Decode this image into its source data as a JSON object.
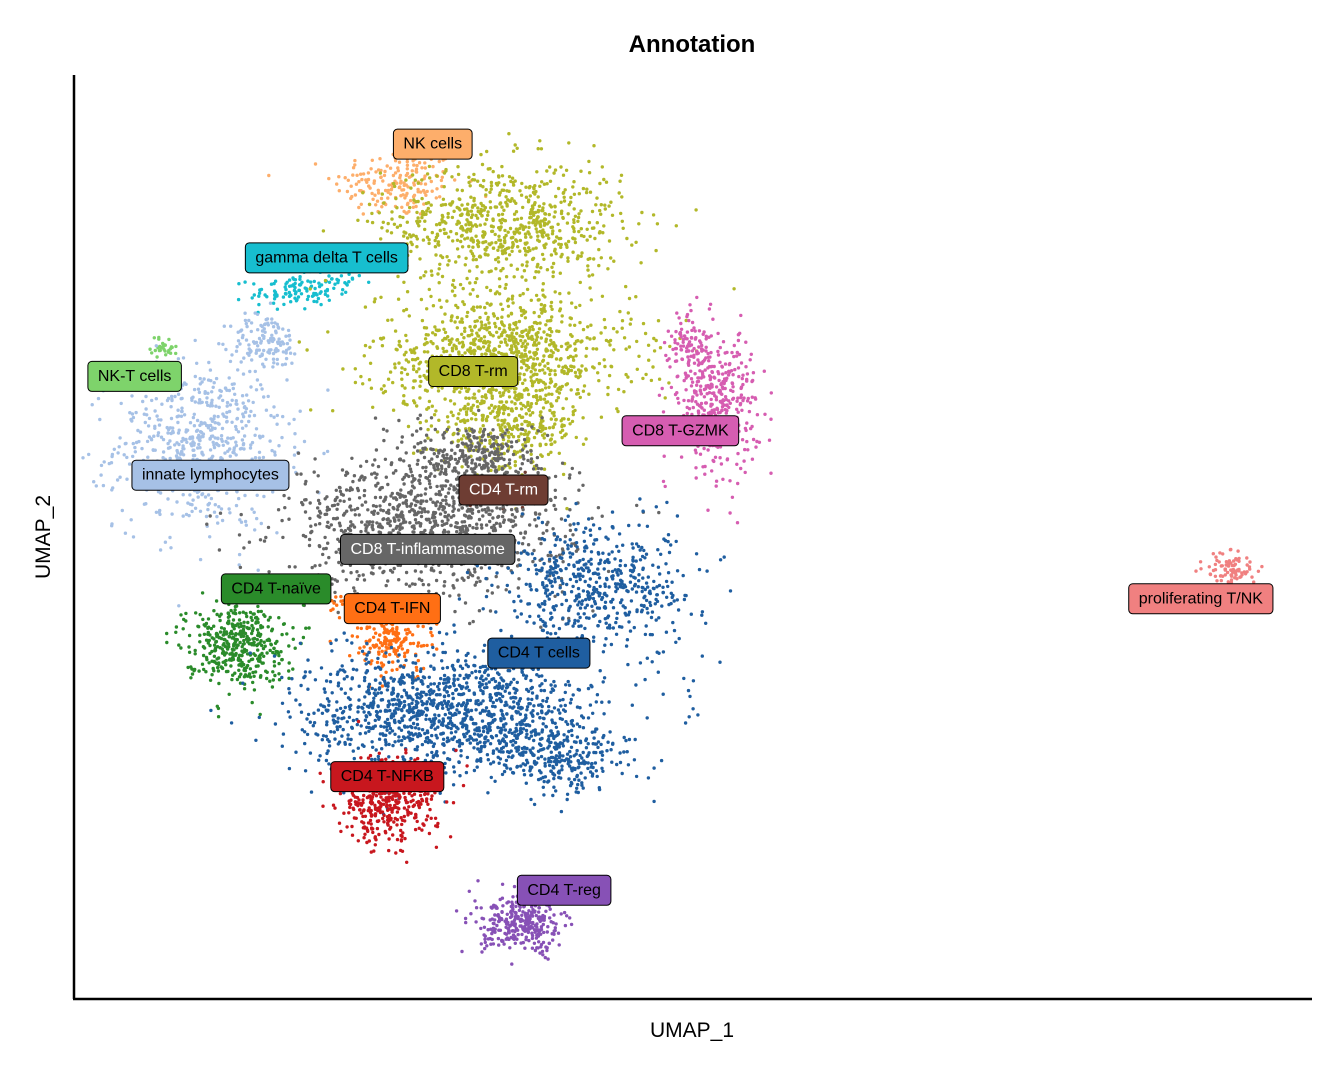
{
  "chart_data": {
    "type": "scatter",
    "title": "Annotation",
    "xlabel": "UMAP_1",
    "ylabel": "UMAP_2",
    "xlim": [
      -8.5,
      16
    ],
    "ylim": [
      -8.2,
      10.5
    ],
    "grid": false,
    "legend": "none (on-plot cluster labels)",
    "clusters": [
      {
        "name": "NK cells",
        "color": "#FDAE6B",
        "text_color": "#000000",
        "label_pos": [
          -1.4,
          9.1
        ],
        "blobs": [
          [
            -2.1,
            8.3,
            0.9,
            0.5,
            180
          ]
        ]
      },
      {
        "name": "gamma delta T cells",
        "color": "#17BECF",
        "text_color": "#000000",
        "label_pos": [
          -3.5,
          6.8
        ],
        "blobs": [
          [
            -4.2,
            6.1,
            0.6,
            0.25,
            90
          ],
          [
            -3.4,
            6.3,
            0.5,
            0.2,
            40
          ]
        ]
      },
      {
        "name": "NK-T cells",
        "color": "#7ED36B",
        "text_color": "#000000",
        "label_pos": [
          -7.3,
          4.4
        ],
        "blobs": [
          [
            -6.7,
            5.0,
            0.2,
            0.15,
            30
          ]
        ]
      },
      {
        "name": "innate lymphocytes",
        "color": "#A6C1E6",
        "text_color": "#000000",
        "label_pos": [
          -5.8,
          2.4
        ],
        "blobs": [
          [
            -6.0,
            3.0,
            1.2,
            1.2,
            650
          ],
          [
            -4.7,
            5.1,
            0.5,
            0.4,
            120
          ]
        ]
      },
      {
        "name": "CD8 T-rm",
        "color": "#B2B829",
        "text_color": "#000000",
        "label_pos": [
          -0.6,
          4.5
        ],
        "blobs": [
          [
            0.0,
            7.5,
            1.7,
            0.9,
            750
          ],
          [
            0.0,
            4.8,
            1.8,
            0.9,
            950
          ],
          [
            0.1,
            3.4,
            1.0,
            0.7,
            350
          ]
        ]
      },
      {
        "name": "CD8 T-GZMK",
        "color": "#D65DB1",
        "text_color": "#000000",
        "label_pos": [
          3.5,
          3.3
        ],
        "blobs": [
          [
            4.2,
            3.9,
            0.6,
            1.0,
            380
          ],
          [
            3.7,
            5.0,
            0.3,
            0.5,
            90
          ]
        ]
      },
      {
        "name": "CD4 T-rm",
        "color": "#6E3D33",
        "text_color": "#FFFFFF",
        "label_pos": [
          0.0,
          2.1
        ],
        "blobs": [
          [
            0.1,
            2.1,
            0.3,
            0.3,
            30
          ]
        ]
      },
      {
        "name": "CD8 T-inflammasome",
        "color": "#666666",
        "text_color": "#FFFFFF",
        "label_pos": [
          -1.5,
          0.9
        ],
        "blobs": [
          [
            -1.5,
            1.4,
            2.0,
            1.0,
            1100
          ],
          [
            -0.5,
            2.8,
            0.9,
            0.5,
            250
          ]
        ]
      },
      {
        "name": "proliferating T/NK",
        "color": "#F08080",
        "text_color": "#000000",
        "label_pos": [
          13.8,
          -0.1
        ],
        "blobs": [
          [
            14.4,
            0.5,
            0.35,
            0.25,
            90
          ]
        ]
      },
      {
        "name": "CD4 T-naïve",
        "color": "#2A8B2A",
        "text_color": "#000000",
        "label_pos": [
          -4.5,
          0.1
        ],
        "blobs": [
          [
            -5.3,
            -1.0,
            0.7,
            0.6,
            420
          ]
        ]
      },
      {
        "name": "CD4 T-IFN",
        "color": "#FF6F14",
        "text_color": "#000000",
        "label_pos": [
          -2.2,
          -0.3
        ],
        "blobs": [
          [
            -2.2,
            -0.9,
            0.6,
            0.5,
            200
          ],
          [
            -2.9,
            -0.3,
            0.35,
            0.2,
            60
          ]
        ]
      },
      {
        "name": "CD4 T cells",
        "color": "#1F5EA0",
        "text_color": "#000000",
        "label_pos": [
          0.7,
          -1.2
        ],
        "blobs": [
          [
            -1.0,
            -2.4,
            2.1,
            0.9,
            1300
          ],
          [
            1.9,
            0.2,
            1.4,
            0.9,
            550
          ],
          [
            1.2,
            -3.4,
            0.9,
            0.5,
            220
          ]
        ]
      },
      {
        "name": "CD4 T-NFKB",
        "color": "#C8171E",
        "text_color": "#000000",
        "label_pos": [
          -2.3,
          -3.7
        ],
        "blobs": [
          [
            -2.3,
            -4.2,
            0.7,
            0.6,
            420
          ]
        ]
      },
      {
        "name": "CD4 T-reg",
        "color": "#8751B6",
        "text_color": "#000000",
        "label_pos": [
          1.2,
          -6.0
        ],
        "blobs": [
          [
            0.4,
            -6.7,
            0.6,
            0.4,
            320
          ]
        ]
      }
    ]
  }
}
